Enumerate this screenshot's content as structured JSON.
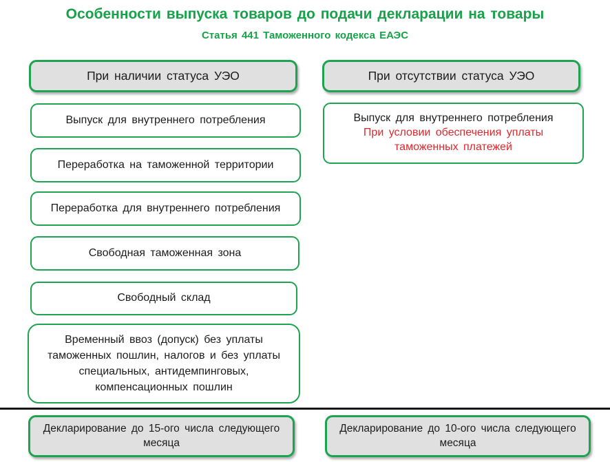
{
  "slide": {
    "title": "Особенности выпуска товаров до подачи декларации на товары",
    "subtitle": "Статья 441 Таможенного кодекса ЕАЭС"
  },
  "colors": {
    "green_accent": "#1ea350",
    "title_green": "#17a24a",
    "red_warning": "#e2262c",
    "gray_fill": "#e0e0e0",
    "divider_black": "#161616"
  },
  "left_column": {
    "header": "При наличии статуса УЭО",
    "boxes": [
      "Выпуск для внутреннего потребления",
      "Переработка на таможенной территории",
      "Переработка для внутреннего потребления",
      "Свободная таможенная зона",
      "Свободный склад",
      "Временный ввоз (допуск) без уплаты таможенных пошлин, налогов и без уплаты специальных, антидемпинговых, компенсационных пошлин"
    ],
    "footer": "Декларирование до 15-ого числа следующего месяца"
  },
  "right_column": {
    "header": "При отсутствии статуса УЭО",
    "box_line1": "Выпуск для внутреннего потребления",
    "box_line2": "При условии обеспечения уплаты таможенных платежей",
    "footer": "Декларирование до 10-ого числа следующего месяца"
  }
}
